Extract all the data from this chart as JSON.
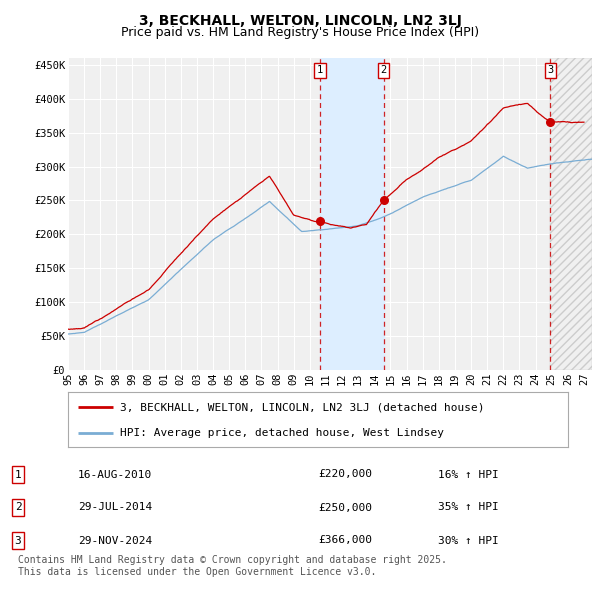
{
  "title": "3, BECKHALL, WELTON, LINCOLN, LN2 3LJ",
  "subtitle": "Price paid vs. HM Land Registry's House Price Index (HPI)",
  "ylabel_ticks": [
    "£0",
    "£50K",
    "£100K",
    "£150K",
    "£200K",
    "£250K",
    "£300K",
    "£350K",
    "£400K",
    "£450K"
  ],
  "ylabel_values": [
    0,
    50000,
    100000,
    150000,
    200000,
    250000,
    300000,
    350000,
    400000,
    450000
  ],
  "ylim": [
    0,
    460000
  ],
  "xlim_start": 1995.0,
  "xlim_end": 2027.5,
  "background_color": "#ffffff",
  "plot_bg_color": "#f0f0f0",
  "grid_color": "#ffffff",
  "sale_prices": [
    220000,
    250000,
    366000
  ],
  "sale_labels": [
    "1",
    "2",
    "3"
  ],
  "sale_hpi_pct": [
    "16%",
    "35%",
    "30%"
  ],
  "sale_date_labels": [
    "16-AUG-2010",
    "29-JUL-2014",
    "29-NOV-2024"
  ],
  "sale_date_nums": [
    2010.625,
    2014.577,
    2024.913
  ],
  "red_line_color": "#cc0000",
  "blue_line_color": "#7aadd4",
  "shaded_region_color": "#ddeeff",
  "dashed_line_color": "#cc0000",
  "legend_label_red": "3, BECKHALL, WELTON, LINCOLN, LN2 3LJ (detached house)",
  "legend_label_blue": "HPI: Average price, detached house, West Lindsey",
  "footer_text": "Contains HM Land Registry data © Crown copyright and database right 2025.\nThis data is licensed under the Open Government Licence v3.0.",
  "title_fontsize": 10,
  "subtitle_fontsize": 9,
  "tick_fontsize": 7.5,
  "legend_fontsize": 8,
  "footer_fontsize": 7,
  "table_fontsize": 8,
  "hatch_region_start": 2024.913,
  "hatch_region_end": 2027.5,
  "xtick_labels": [
    "95",
    "96",
    "97",
    "98",
    "99",
    "00",
    "01",
    "02",
    "03",
    "04",
    "05",
    "06",
    "07",
    "08",
    "09",
    "10",
    "11",
    "12",
    "13",
    "14",
    "15",
    "16",
    "17",
    "18",
    "19",
    "20",
    "21",
    "22",
    "23",
    "24",
    "25",
    "26",
    "27"
  ]
}
